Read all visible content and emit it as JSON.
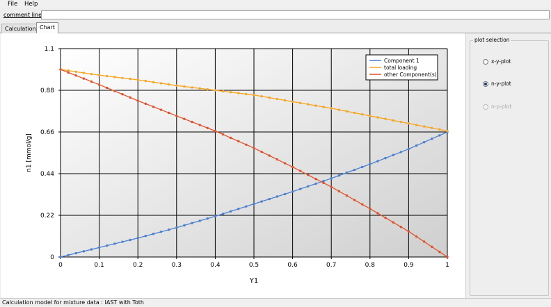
{
  "menu": {
    "file": "File",
    "help": "Help"
  },
  "comment": {
    "label": "comment line :",
    "value": ""
  },
  "tabs": [
    {
      "label": "Calculation"
    },
    {
      "label": "Chart"
    }
  ],
  "plot_selection": {
    "title": "plot selection",
    "options": [
      {
        "label": "x-y-plot",
        "selected": false,
        "enabled": true
      },
      {
        "label": "n-y-plot",
        "selected": true,
        "enabled": true
      },
      {
        "label": "n-p-plot",
        "selected": false,
        "enabled": false
      }
    ]
  },
  "status": {
    "text": "Calculation model for mixture data : IAST with Toth"
  },
  "colors": {
    "component1": "#4a7fd0",
    "total_loading": "#f5a623",
    "other_components": "#e0512a"
  },
  "chart_data": {
    "type": "line",
    "xlabel": "Y1",
    "ylabel": "n1 [mmol/g]",
    "xlim": [
      0,
      1
    ],
    "ylim": [
      0,
      1.1
    ],
    "x_ticks": [
      "0",
      "0.1",
      "0.2",
      "0.3",
      "0.4",
      "0.5",
      "0.6",
      "0.7",
      "0.8",
      "0.9",
      "1"
    ],
    "y_ticks": [
      "0",
      "0.22",
      "0.44",
      "0.66",
      "0.88",
      "1.1"
    ],
    "grid": true,
    "legend_position": "top-right",
    "series": [
      {
        "name": "Component 1",
        "x": [
          0,
          0.1,
          0.2,
          0.3,
          0.4,
          0.5,
          0.6,
          0.7,
          0.8,
          0.9,
          1
        ],
        "y": [
          0,
          0.05,
          0.1,
          0.155,
          0.215,
          0.28,
          0.345,
          0.415,
          0.49,
          0.57,
          0.66
        ]
      },
      {
        "name": "total loading",
        "x": [
          0,
          0.1,
          0.2,
          0.3,
          0.4,
          0.5,
          0.6,
          0.7,
          0.8,
          0.9,
          1
        ],
        "y": [
          0.99,
          0.96,
          0.935,
          0.905,
          0.88,
          0.855,
          0.82,
          0.785,
          0.745,
          0.705,
          0.665
        ]
      },
      {
        "name": "other Component(s)",
        "x": [
          0,
          0.1,
          0.2,
          0.3,
          0.4,
          0.5,
          0.6,
          0.7,
          0.8,
          0.9,
          1
        ],
        "y": [
          0.99,
          0.91,
          0.825,
          0.745,
          0.665,
          0.575,
          0.475,
          0.37,
          0.255,
          0.135,
          0
        ]
      }
    ]
  }
}
